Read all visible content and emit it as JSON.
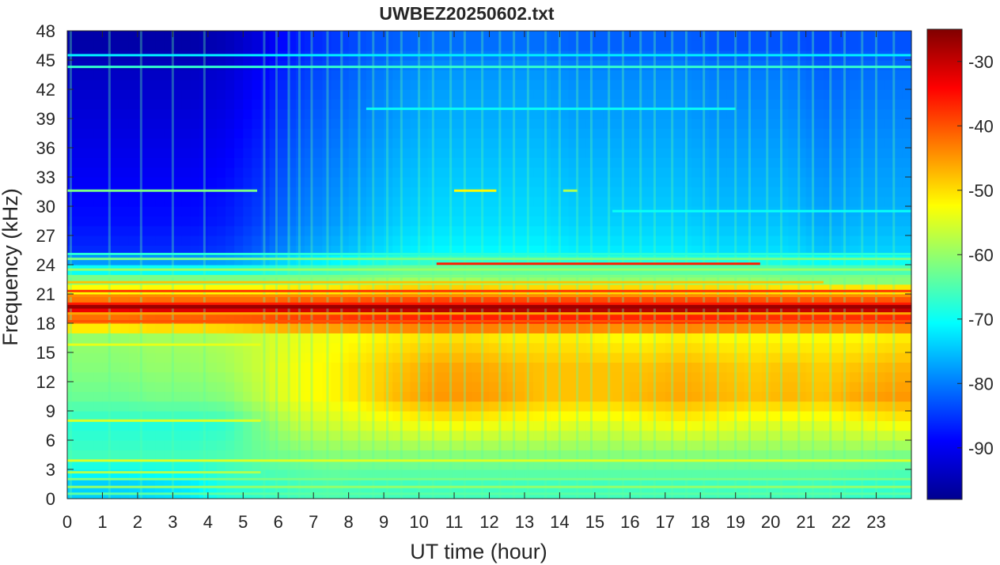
{
  "chart_data": {
    "type": "heatmap",
    "title": "UWBEZ20250602.txt",
    "xlabel": "UT time (hour)",
    "ylabel": "Frequency (kHz)",
    "xlim": [
      0,
      24
    ],
    "ylim": [
      0,
      48
    ],
    "x_ticks": [
      0,
      1,
      2,
      3,
      4,
      5,
      6,
      7,
      8,
      9,
      10,
      11,
      12,
      13,
      14,
      15,
      16,
      17,
      18,
      19,
      20,
      21,
      22,
      23
    ],
    "y_ticks": [
      0,
      3,
      6,
      9,
      12,
      15,
      18,
      21,
      24,
      27,
      30,
      33,
      36,
      39,
      42,
      45,
      48
    ],
    "colorbar": {
      "colormap": "jet",
      "range": [
        -98,
        -25
      ],
      "ticks": [
        -30,
        -40,
        -50,
        -60,
        -70,
        -80,
        -90
      ]
    },
    "grid": false,
    "time_step_hours": 0.25,
    "freq_step_khz": 3,
    "freq_centers_khz": [
      1.5,
      4.5,
      7.5,
      10.5,
      13.5,
      16.5,
      19.5,
      22.5,
      25.5,
      28.5,
      31.5,
      34.5,
      37.5,
      40.5,
      43.5,
      46.5
    ],
    "value_rows_db": [
      [
        -74,
        -74,
        -73,
        -72,
        -68,
        -67,
        -66,
        -65,
        -66,
        -66,
        -66,
        -66,
        -66,
        -66,
        -66,
        -66,
        -66,
        -66,
        -66,
        -66,
        -66,
        -66,
        -67,
        -67
      ],
      [
        -66,
        -66,
        -66,
        -66,
        -65,
        -63,
        -62,
        -61,
        -61,
        -61,
        -61,
        -61,
        -61,
        -61,
        -61,
        -61,
        -61,
        -61,
        -61,
        -61,
        -61,
        -61,
        -61,
        -62
      ],
      [
        -68,
        -68,
        -68,
        -68,
        -67,
        -62,
        -57,
        -56,
        -55,
        -54,
        -53,
        -53,
        -54,
        -54,
        -55,
        -55,
        -54,
        -53,
        -54,
        -55,
        -55,
        -55,
        -54,
        -53
      ],
      [
        -63,
        -63,
        -62,
        -62,
        -61,
        -57,
        -53,
        -52,
        -50,
        -47,
        -45,
        -45,
        -46,
        -48,
        -48,
        -48,
        -47,
        -46,
        -47,
        -48,
        -47,
        -48,
        -46,
        -45
      ],
      [
        -61,
        -61,
        -60,
        -60,
        -59,
        -56,
        -53,
        -52,
        -50,
        -48,
        -46,
        -46,
        -47,
        -48,
        -48,
        -48,
        -48,
        -47,
        -48,
        -49,
        -48,
        -49,
        -48,
        -47
      ],
      [
        -60,
        -60,
        -59,
        -59,
        -58,
        -56,
        -54,
        -53,
        -52,
        -51,
        -50,
        -50,
        -51,
        -51,
        -51,
        -52,
        -52,
        -51,
        -52,
        -52,
        -52,
        -52,
        -52,
        -51
      ],
      [
        -33,
        -33,
        -32,
        -32,
        -32,
        -32,
        -31,
        -31,
        -30,
        -30,
        -29,
        -29,
        -29,
        -29,
        -29,
        -29,
        -29,
        -29,
        -29,
        -30,
        -30,
        -30,
        -30,
        -30
      ],
      [
        -62,
        -62,
        -62,
        -62,
        -62,
        -62,
        -61,
        -61,
        -60,
        -59,
        -59,
        -59,
        -60,
        -60,
        -60,
        -60,
        -60,
        -60,
        -60,
        -60,
        -61,
        -61,
        -61,
        -61
      ],
      [
        -86,
        -86,
        -86,
        -86,
        -85,
        -82,
        -78,
        -76,
        -74,
        -72,
        -71,
        -71,
        -71,
        -71,
        -72,
        -72,
        -72,
        -72,
        -73,
        -73,
        -73,
        -75,
        -74,
        -74
      ],
      [
        -88,
        -88,
        -88,
        -88,
        -87,
        -84,
        -80,
        -78,
        -76,
        -74,
        -73,
        -73,
        -73,
        -73,
        -74,
        -74,
        -74,
        -74,
        -75,
        -75,
        -75,
        -77,
        -76,
        -76
      ],
      [
        -89,
        -89,
        -89,
        -89,
        -88,
        -85,
        -81,
        -79,
        -77,
        -75,
        -74,
        -74,
        -74,
        -74,
        -75,
        -75,
        -75,
        -75,
        -76,
        -76,
        -76,
        -78,
        -77,
        -77
      ],
      [
        -90,
        -90,
        -90,
        -90,
        -89,
        -86,
        -82,
        -80,
        -78,
        -76,
        -75,
        -75,
        -75,
        -75,
        -76,
        -76,
        -76,
        -76,
        -77,
        -77,
        -77,
        -79,
        -78,
        -78
      ],
      [
        -91,
        -91,
        -91,
        -91,
        -90,
        -87,
        -83,
        -81,
        -79,
        -77,
        -76,
        -76,
        -76,
        -76,
        -77,
        -77,
        -77,
        -77,
        -78,
        -78,
        -78,
        -80,
        -79,
        -79
      ],
      [
        -92,
        -92,
        -92,
        -92,
        -91,
        -88,
        -84,
        -82,
        -80,
        -78,
        -77,
        -77,
        -77,
        -77,
        -78,
        -78,
        -78,
        -78,
        -79,
        -79,
        -79,
        -81,
        -80,
        -80
      ],
      [
        -93,
        -93,
        -93,
        -93,
        -92,
        -89,
        -85,
        -83,
        -81,
        -79,
        -78,
        -78,
        -78,
        -78,
        -79,
        -79,
        -79,
        -79,
        -80,
        -80,
        -80,
        -82,
        -81,
        -81
      ],
      [
        -95,
        -95,
        -95,
        -95,
        -94,
        -91,
        -87,
        -85,
        -83,
        -82,
        -81,
        -81,
        -81,
        -81,
        -82,
        -82,
        -82,
        -82,
        -83,
        -83,
        -83,
        -84,
        -83,
        -83
      ]
    ],
    "horizontal_lines": [
      {
        "freq_khz": 0.5,
        "from_hour": 0,
        "to_hour": 24,
        "db": -64
      },
      {
        "freq_khz": 1.2,
        "from_hour": 0,
        "to_hour": 24,
        "db": -60
      },
      {
        "freq_khz": 2.0,
        "from_hour": 0,
        "to_hour": 24,
        "db": -62
      },
      {
        "freq_khz": 2.7,
        "from_hour": 0,
        "to_hour": 5.5,
        "db": -58
      },
      {
        "freq_khz": 3.9,
        "from_hour": 0,
        "to_hour": 24,
        "db": -55
      },
      {
        "freq_khz": 8.0,
        "from_hour": 0,
        "to_hour": 5.5,
        "db": -55
      },
      {
        "freq_khz": 15.8,
        "from_hour": 0,
        "to_hour": 5.5,
        "db": -54
      },
      {
        "freq_khz": 18.2,
        "from_hour": 0,
        "to_hour": 24,
        "db": -40
      },
      {
        "freq_khz": 19.0,
        "from_hour": 0,
        "to_hour": 24,
        "db": -46
      },
      {
        "freq_khz": 19.7,
        "from_hour": 0,
        "to_hour": 24,
        "db": -27
      },
      {
        "freq_khz": 20.0,
        "from_hour": 0,
        "to_hour": 24,
        "db": -36
      },
      {
        "freq_khz": 20.8,
        "from_hour": 0,
        "to_hour": 24,
        "db": -44
      },
      {
        "freq_khz": 21.3,
        "from_hour": 0,
        "to_hour": 24,
        "db": -38
      },
      {
        "freq_khz": 22.2,
        "from_hour": 0,
        "to_hour": 21.5,
        "db": -48
      },
      {
        "freq_khz": 22.8,
        "from_hour": 0,
        "to_hour": 24,
        "db": -62
      },
      {
        "freq_khz": 23.5,
        "from_hour": 0,
        "to_hour": 24,
        "db": -60
      },
      {
        "freq_khz": 24.1,
        "from_hour": 10.5,
        "to_hour": 19.7,
        "db": -36
      },
      {
        "freq_khz": 24.6,
        "from_hour": 0,
        "to_hour": 24,
        "db": -62
      },
      {
        "freq_khz": 25.1,
        "from_hour": 0,
        "to_hour": 24,
        "db": -68
      },
      {
        "freq_khz": 29.5,
        "from_hour": 15.5,
        "to_hour": 24,
        "db": -70
      },
      {
        "freq_khz": 31.6,
        "from_hour": 0,
        "to_hour": 5.4,
        "db": -62
      },
      {
        "freq_khz": 31.6,
        "from_hour": 11,
        "to_hour": 12.2,
        "db": -52
      },
      {
        "freq_khz": 31.6,
        "from_hour": 14.1,
        "to_hour": 14.5,
        "db": -58
      },
      {
        "freq_khz": 40.0,
        "from_hour": 8.5,
        "to_hour": 19,
        "db": -70
      },
      {
        "freq_khz": 44.3,
        "from_hour": 0,
        "to_hour": 24,
        "db": -67
      },
      {
        "freq_khz": 45.5,
        "from_hour": 0,
        "to_hour": 24,
        "db": -72
      }
    ],
    "vertical_streaks_hours": [
      0.1,
      1.2,
      2.1,
      3.0,
      3.9,
      5.6,
      5.95,
      6.3,
      6.6,
      6.95,
      7.4,
      7.8,
      8.3,
      8.7,
      9.1,
      9.5,
      10.0,
      10.4,
      10.9,
      11.3,
      11.8,
      12.3,
      12.7,
      13.1,
      13.6,
      14.0,
      14.5,
      14.9,
      15.4,
      15.8,
      16.3,
      16.7,
      17.2,
      17.6,
      18.1,
      18.5,
      19.0,
      19.4,
      19.9,
      20.3,
      20.8,
      21.2,
      21.7,
      22.1,
      22.6,
      23.0,
      23.5
    ]
  }
}
